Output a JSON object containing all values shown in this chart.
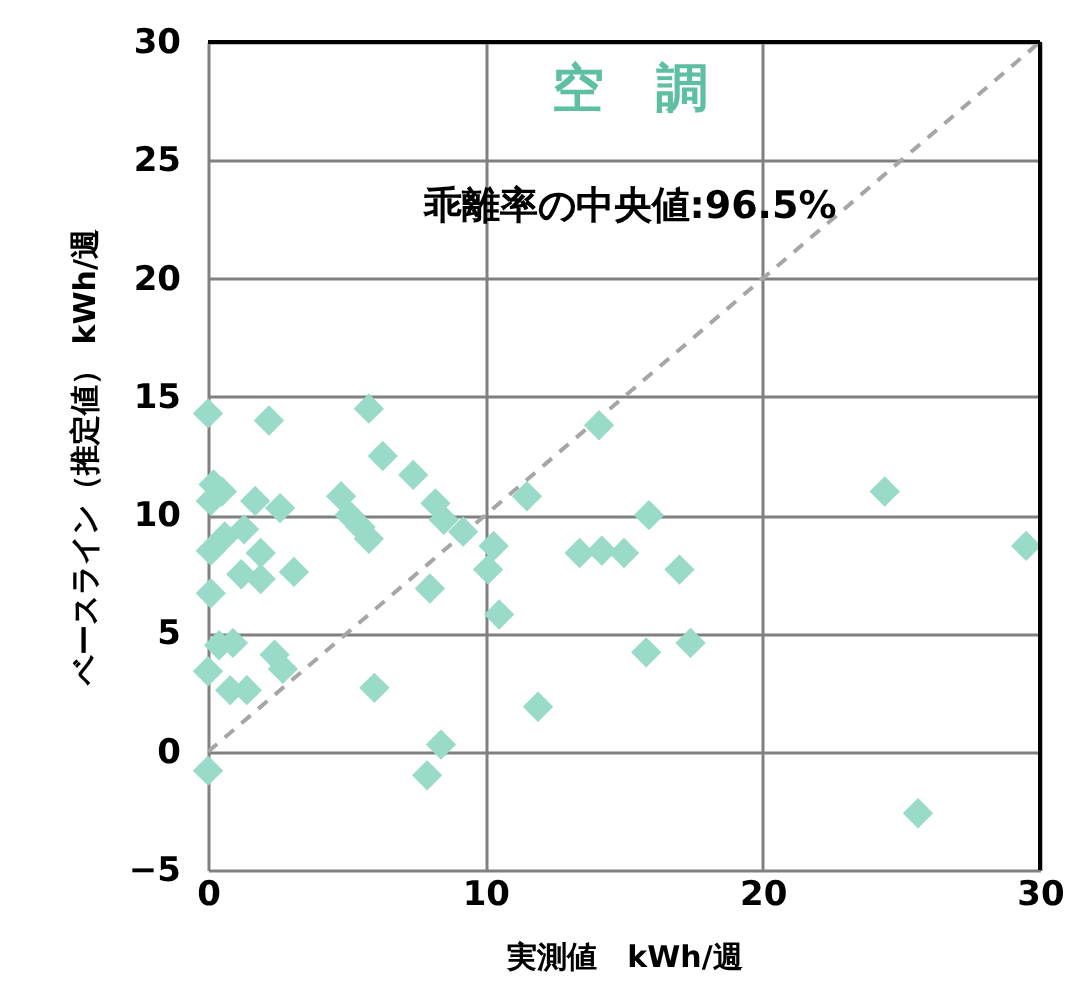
{
  "chart_data": {
    "type": "scatter",
    "title": "空　調",
    "xlabel": "実測値　kWh/週",
    "ylabel": "ベースライン（推定値） kWh/週",
    "annotations": [
      "乖離率の中央値:96.5%"
    ],
    "xlim": [
      0,
      30
    ],
    "ylim": [
      -5,
      30
    ],
    "xticks": [
      0,
      10,
      20,
      30
    ],
    "yticks": [
      -5,
      0,
      5,
      10,
      15,
      20,
      25,
      30
    ],
    "grid": true,
    "series": [
      {
        "color": "#99dbc8",
        "marker": "diamond",
        "x": [
          0,
          2.2,
          5.8,
          6.3,
          7.4,
          0.2,
          0.5,
          0.1,
          1.7,
          2.6,
          4.8,
          5.1,
          5.5,
          5.8,
          8.2,
          8.5,
          9.2,
          11.5,
          14.1,
          10.3,
          10.1,
          10.5,
          8.0,
          0.1,
          0.6,
          1.3,
          1.9,
          1.2,
          1.9,
          3.1,
          0.1,
          0.4,
          0.9,
          2.4,
          2.7,
          0,
          0.8,
          1.4,
          6.0,
          8.4,
          7.9,
          0,
          15.9,
          24.4,
          29.5,
          13.4,
          14.2,
          15.0,
          17.0,
          15.8,
          17.4,
          11.9,
          25.6
        ],
        "values": [
          14.3,
          14.0,
          14.5,
          12.5,
          11.7,
          11.3,
          11.0,
          10.6,
          10.6,
          10.3,
          10.8,
          10.0,
          9.5,
          9.0,
          10.5,
          9.8,
          9.3,
          10.8,
          13.8,
          8.7,
          7.7,
          5.8,
          6.9,
          8.5,
          9.1,
          9.4,
          8.4,
          7.5,
          7.3,
          7.6,
          6.7,
          4.5,
          4.6,
          4.1,
          3.5,
          3.4,
          2.6,
          2.6,
          2.7,
          0.3,
          -1.0,
          -0.8,
          10.0,
          11.0,
          8.7,
          8.4,
          8.5,
          8.4,
          7.7,
          4.2,
          4.6,
          1.9,
          -2.6
        ]
      },
      {
        "type": "line",
        "color": "#a6a6a6",
        "line_style": "dashed",
        "x": [
          0,
          30
        ],
        "values": [
          0,
          30
        ]
      }
    ]
  }
}
